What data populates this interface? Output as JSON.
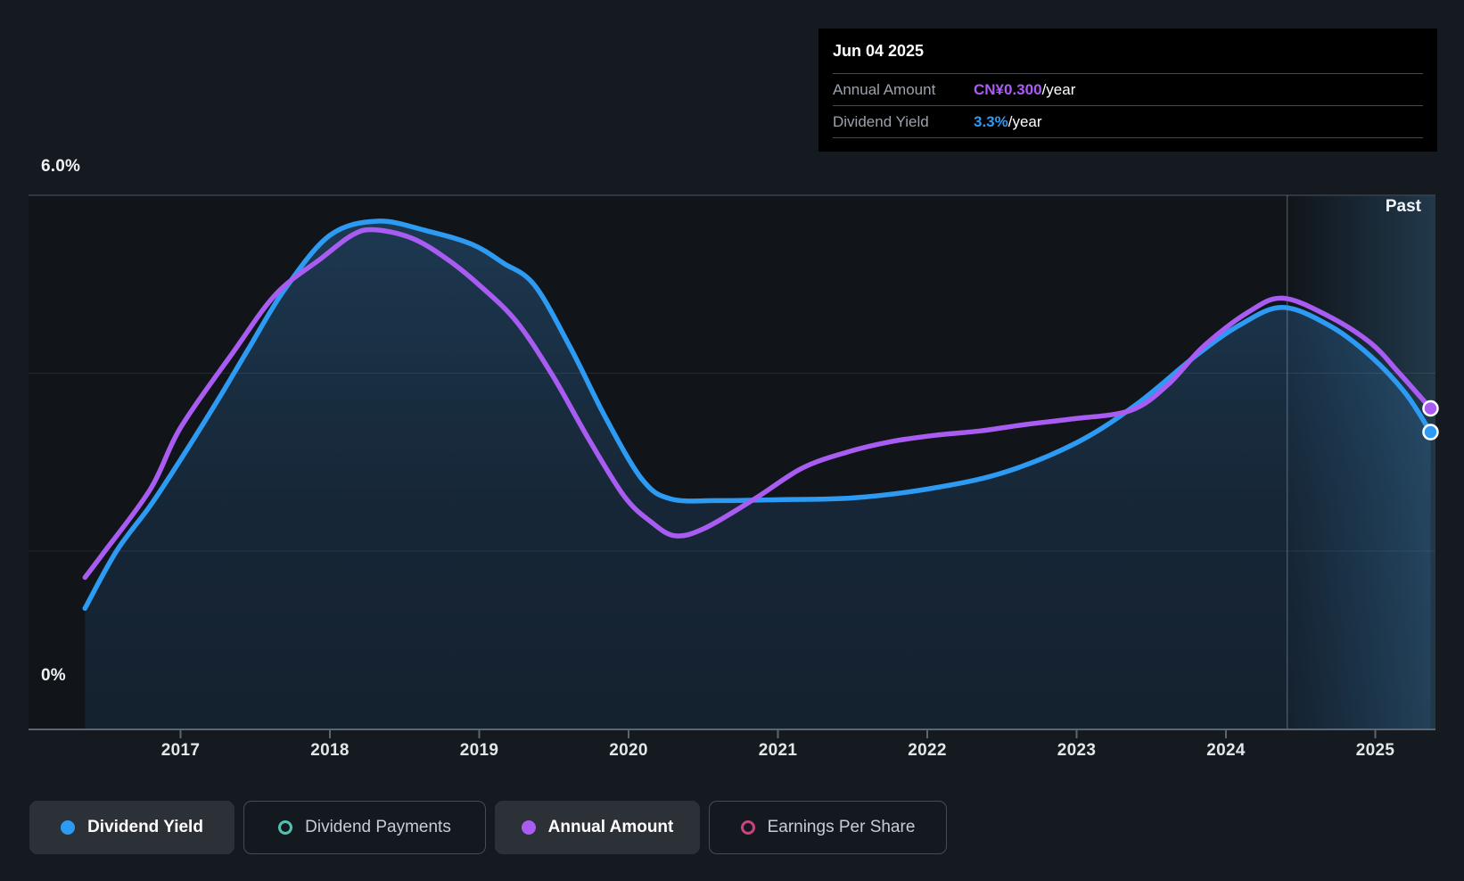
{
  "page": {
    "background": "#151a20"
  },
  "tooltip": {
    "date": "Jun 04 2025",
    "rows": [
      {
        "label": "Annual Amount",
        "value": "CN¥0.300",
        "suffix": "/year",
        "color": "#ab5cf5"
      },
      {
        "label": "Dividend Yield",
        "value": "3.3%",
        "suffix": "/year",
        "color": "#2d9bf3"
      }
    ]
  },
  "axis": {
    "y_top_label": "6.0%",
    "y_bottom_label": "0%",
    "past_label": "Past",
    "years": [
      "2017",
      "2018",
      "2019",
      "2020",
      "2021",
      "2022",
      "2023",
      "2024",
      "2025"
    ]
  },
  "legend": {
    "items": [
      {
        "label": "Dividend Yield",
        "marker": "dot-filled",
        "color": "#2d9bf3",
        "active": true
      },
      {
        "label": "Dividend Payments",
        "marker": "dot-open",
        "color": "#4cc6b2",
        "active": false
      },
      {
        "label": "Annual Amount",
        "marker": "dot-filled",
        "color": "#a95cf2",
        "active": true
      },
      {
        "label": "Earnings Per Share",
        "marker": "dot-open",
        "color": "#c8437f",
        "active": false
      }
    ]
  },
  "colors": {
    "yield_blue": "#2d9bf3",
    "amount_purple": "#a95cf2",
    "payments_teal": "#4cc6b2",
    "eps_pink": "#c8437f",
    "tooltip_bg": "#000000"
  },
  "chart_data": {
    "type": "line",
    "title": "Dividend yield and annual dividend amount history",
    "x_axis": {
      "label": "year",
      "range": [
        2016.36,
        2025.45
      ],
      "ticks": [
        2017,
        2018,
        2019,
        2020,
        2021,
        2022,
        2023,
        2024,
        2025
      ]
    },
    "y_axis": {
      "label": "Dividend Yield",
      "unit": "%",
      "range": [
        0,
        6
      ],
      "gridlines_pct": [
        0,
        2,
        4,
        6
      ],
      "labeled_ticks": [
        "6.0%",
        "0%"
      ]
    },
    "past_divider_year": 2024.41,
    "legend_position": "bottom",
    "grid": true,
    "series": [
      {
        "name": "Dividend Yield",
        "unit": "%",
        "color": "#2d9bf3",
        "area_fill": true,
        "points": [
          [
            2016.36,
            1.36
          ],
          [
            2016.57,
            2.0
          ],
          [
            2016.8,
            2.52
          ],
          [
            2017.0,
            3.03
          ],
          [
            2017.25,
            3.7
          ],
          [
            2017.46,
            4.29
          ],
          [
            2017.7,
            4.95
          ],
          [
            2018.0,
            5.55
          ],
          [
            2018.32,
            5.71
          ],
          [
            2018.65,
            5.6
          ],
          [
            2018.95,
            5.45
          ],
          [
            2019.16,
            5.24
          ],
          [
            2019.37,
            4.99
          ],
          [
            2019.61,
            4.29
          ],
          [
            2019.85,
            3.49
          ],
          [
            2020.09,
            2.81
          ],
          [
            2020.28,
            2.59
          ],
          [
            2020.6,
            2.57
          ],
          [
            2021.0,
            2.58
          ],
          [
            2021.5,
            2.6
          ],
          [
            2022.0,
            2.7
          ],
          [
            2022.5,
            2.88
          ],
          [
            2023.0,
            3.22
          ],
          [
            2023.4,
            3.65
          ],
          [
            2023.8,
            4.2
          ],
          [
            2024.1,
            4.55
          ],
          [
            2024.38,
            4.74
          ],
          [
            2024.7,
            4.53
          ],
          [
            2024.97,
            4.19
          ],
          [
            2025.2,
            3.78
          ],
          [
            2025.37,
            3.34
          ]
        ]
      },
      {
        "name": "Annual Amount",
        "unit": "CN¥/year",
        "color": "#a95cf2",
        "area_fill": false,
        "plot_scale_pct_per_unit": 12.02,
        "points": [
          [
            2016.36,
            0.142
          ],
          [
            2016.49,
            0.166
          ],
          [
            2016.8,
            0.225
          ],
          [
            2017.0,
            0.282
          ],
          [
            2017.35,
            0.352
          ],
          [
            2017.64,
            0.407
          ],
          [
            2017.94,
            0.44
          ],
          [
            2018.15,
            0.462
          ],
          [
            2018.3,
            0.467
          ],
          [
            2018.55,
            0.459
          ],
          [
            2018.78,
            0.44
          ],
          [
            2019.01,
            0.414
          ],
          [
            2019.25,
            0.381
          ],
          [
            2019.49,
            0.331
          ],
          [
            2019.73,
            0.272
          ],
          [
            2019.97,
            0.218
          ],
          [
            2020.15,
            0.194
          ],
          [
            2020.31,
            0.181
          ],
          [
            2020.51,
            0.188
          ],
          [
            2020.85,
            0.216
          ],
          [
            2021.16,
            0.244
          ],
          [
            2021.46,
            0.259
          ],
          [
            2021.76,
            0.269
          ],
          [
            2022.06,
            0.275
          ],
          [
            2022.36,
            0.279
          ],
          [
            2022.66,
            0.285
          ],
          [
            2022.96,
            0.29
          ],
          [
            2023.36,
            0.298
          ],
          [
            2023.61,
            0.322
          ],
          [
            2023.85,
            0.358
          ],
          [
            2024.15,
            0.39
          ],
          [
            2024.38,
            0.403
          ],
          [
            2024.69,
            0.386
          ],
          [
            2024.97,
            0.361
          ],
          [
            2025.16,
            0.333
          ],
          [
            2025.37,
            0.3
          ]
        ]
      }
    ],
    "current": {
      "date": "Jun 04 2025",
      "dividend_yield_pct": 3.3,
      "annual_amount_cny": 0.3
    }
  }
}
